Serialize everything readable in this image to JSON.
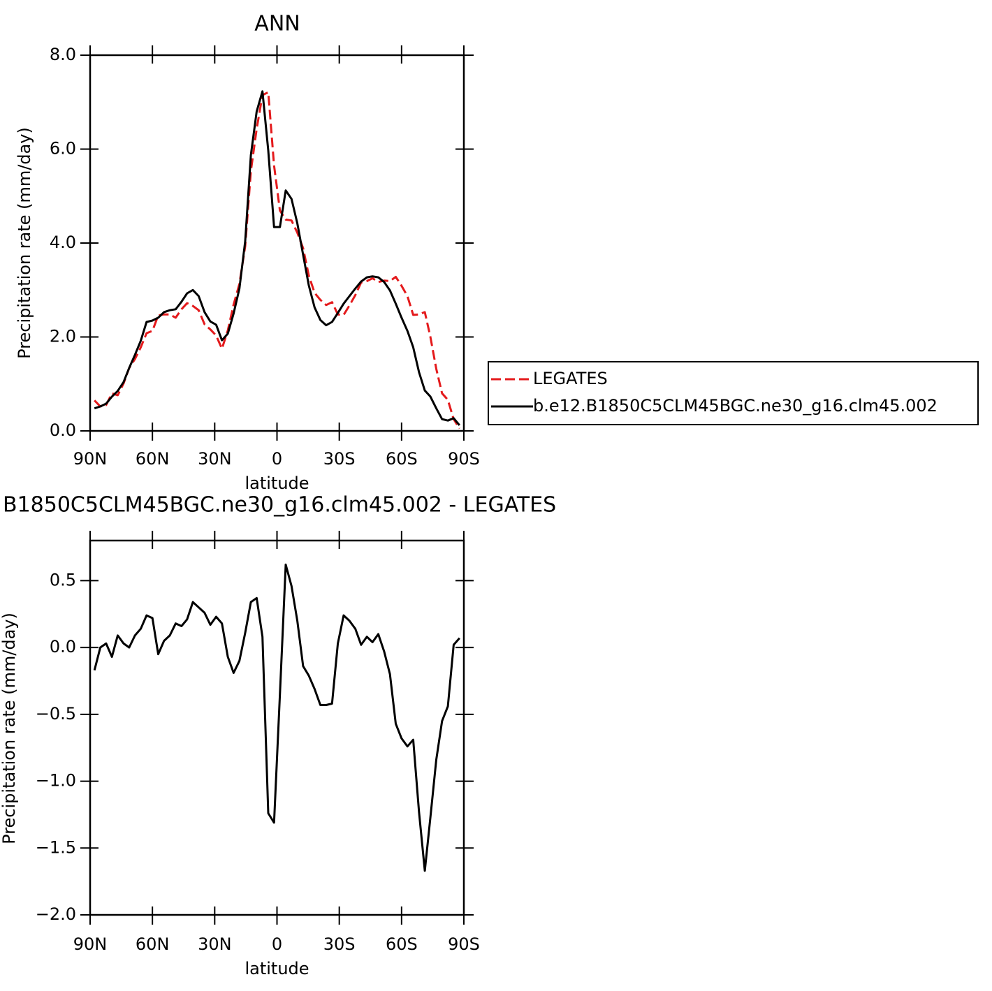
{
  "chart_data": [
    {
      "type": "line",
      "title": "ANN",
      "xlabel": "latitude",
      "ylabel": "Precipitation rate (mm/day)",
      "x": [
        87.9,
        85.1,
        82.3,
        79.5,
        76.7,
        73.9,
        71.2,
        68.4,
        65.6,
        62.8,
        60.0,
        57.2,
        54.4,
        51.6,
        48.8,
        46.0,
        43.3,
        40.5,
        37.7,
        34.9,
        32.1,
        29.3,
        26.5,
        23.7,
        20.9,
        18.1,
        15.3,
        12.6,
        9.8,
        7.0,
        4.2,
        1.4,
        -1.4,
        -4.2,
        -7.0,
        -9.8,
        -12.6,
        -15.3,
        -18.1,
        -20.9,
        -23.7,
        -26.5,
        -29.3,
        -32.1,
        -34.9,
        -37.7,
        -40.5,
        -43.3,
        -46.0,
        -48.8,
        -51.6,
        -54.4,
        -57.2,
        -60.0,
        -62.8,
        -65.6,
        -68.4,
        -71.2,
        -73.9,
        -76.7,
        -79.5,
        -82.3,
        -85.1,
        -87.9
      ],
      "series": [
        {
          "name": "LEGATES",
          "color": "#e41a1c",
          "linestyle": "dashed",
          "values": [
            0.65,
            0.52,
            0.55,
            0.8,
            0.76,
            1.01,
            1.34,
            1.53,
            1.78,
            2.08,
            2.13,
            2.46,
            2.48,
            2.48,
            2.41,
            2.59,
            2.72,
            2.66,
            2.57,
            2.27,
            2.16,
            2.03,
            1.75,
            2.14,
            2.69,
            3.13,
            3.93,
            5.53,
            6.43,
            7.15,
            7.21,
            5.65,
            4.69,
            4.5,
            4.48,
            4.22,
            3.89,
            3.31,
            2.94,
            2.79,
            2.68,
            2.74,
            2.48,
            2.47,
            2.67,
            2.89,
            3.16,
            3.19,
            3.25,
            3.17,
            3.2,
            3.19,
            3.28,
            3.09,
            2.87,
            2.47,
            2.48,
            2.53,
            2.0,
            1.32,
            0.8,
            0.66,
            0.25,
            0.05
          ]
        },
        {
          "name": "b.e12.B1850C5CLM45BGC.ne30_g16.clm45.002",
          "color": "#000000",
          "linestyle": "solid",
          "values": [
            0.48,
            0.52,
            0.58,
            0.73,
            0.85,
            1.04,
            1.34,
            1.62,
            1.92,
            2.32,
            2.35,
            2.41,
            2.53,
            2.57,
            2.59,
            2.75,
            2.93,
            3.0,
            2.87,
            2.53,
            2.33,
            2.26,
            1.93,
            2.07,
            2.5,
            3.03,
            4.04,
            5.87,
            6.8,
            7.23,
            5.97,
            4.34,
            4.34,
            5.12,
            4.94,
            4.42,
            3.75,
            3.1,
            2.63,
            2.36,
            2.25,
            2.32,
            2.51,
            2.71,
            2.87,
            3.03,
            3.18,
            3.27,
            3.29,
            3.27,
            3.17,
            2.99,
            2.71,
            2.41,
            2.13,
            1.78,
            1.25,
            0.86,
            0.73,
            0.48,
            0.25,
            0.22,
            0.27,
            0.12
          ]
        }
      ],
      "xlim": [
        90,
        -90
      ],
      "xticks": [
        {
          "value": 90,
          "label": "90N"
        },
        {
          "value": 60,
          "label": "60N"
        },
        {
          "value": 30,
          "label": "30N"
        },
        0,
        {
          "value": -30,
          "label": "30S"
        },
        {
          "value": -60,
          "label": "60S"
        },
        {
          "value": -90,
          "label": "90S"
        }
      ],
      "ylim": [
        0,
        8
      ],
      "yticks": [
        {
          "value": 0,
          "label": "0.0"
        },
        {
          "value": 2,
          "label": "2.0"
        },
        {
          "value": 4,
          "label": "4.0"
        },
        {
          "value": 6,
          "label": "6.0"
        },
        {
          "value": 8,
          "label": "8.0"
        }
      ],
      "legend": "right"
    },
    {
      "type": "line",
      "title": "B1850C5CLM45BGC.ne30_g16.clm45.002 - LEGATES",
      "xlabel": "latitude",
      "ylabel": "Precipitation rate (mm/day)",
      "x": [
        87.9,
        85.1,
        82.3,
        79.5,
        76.7,
        73.9,
        71.2,
        68.4,
        65.6,
        62.8,
        60.0,
        57.2,
        54.4,
        51.6,
        48.8,
        46.0,
        43.3,
        40.5,
        37.7,
        34.9,
        32.1,
        29.3,
        26.5,
        23.7,
        20.9,
        18.1,
        15.3,
        12.6,
        9.8,
        7.0,
        4.2,
        1.4,
        -1.4,
        -4.2,
        -7.0,
        -9.8,
        -12.6,
        -15.3,
        -18.1,
        -20.9,
        -23.7,
        -26.5,
        -29.3,
        -32.1,
        -34.9,
        -37.7,
        -40.5,
        -43.3,
        -46.0,
        -48.8,
        -51.6,
        -54.4,
        -57.2,
        -60.0,
        -62.8,
        -65.6,
        -68.4,
        -71.2,
        -73.9,
        -76.7,
        -79.5,
        -82.3,
        -85.1,
        -87.9
      ],
      "values": [
        -0.17,
        0.0,
        0.03,
        -0.07,
        0.09,
        0.03,
        0.0,
        0.09,
        0.14,
        0.24,
        0.22,
        -0.05,
        0.05,
        0.09,
        0.18,
        0.16,
        0.21,
        0.34,
        0.3,
        0.26,
        0.17,
        0.23,
        0.18,
        -0.07,
        -0.19,
        -0.1,
        0.11,
        0.34,
        0.37,
        0.08,
        -1.24,
        -1.31,
        -0.35,
        0.62,
        0.46,
        0.2,
        -0.14,
        -0.21,
        -0.31,
        -0.43,
        -0.43,
        -0.42,
        0.03,
        0.24,
        0.2,
        0.14,
        0.02,
        0.08,
        0.04,
        0.1,
        -0.03,
        -0.2,
        -0.57,
        -0.68,
        -0.74,
        -0.69,
        -1.23,
        -1.67,
        -1.27,
        -0.84,
        -0.55,
        -0.44,
        0.02,
        0.07
      ],
      "color": "#000000",
      "xlim": [
        90,
        -90
      ],
      "xticks": [
        {
          "value": 90,
          "label": "90N"
        },
        {
          "value": 60,
          "label": "60N"
        },
        {
          "value": 30,
          "label": "30N"
        },
        0,
        {
          "value": -30,
          "label": "30S"
        },
        {
          "value": -60,
          "label": "60S"
        },
        {
          "value": -90,
          "label": "90S"
        }
      ],
      "ylim": [
        -2.0,
        0.8
      ],
      "yticks": [
        {
          "value": -2.0,
          "label": "−2.0"
        },
        {
          "value": -1.5,
          "label": "−1.5"
        },
        {
          "value": -1.0,
          "label": "−1.0"
        },
        {
          "value": -0.5,
          "label": "−0.5"
        },
        {
          "value": 0,
          "label": "0.0"
        },
        0.5
      ]
    }
  ]
}
